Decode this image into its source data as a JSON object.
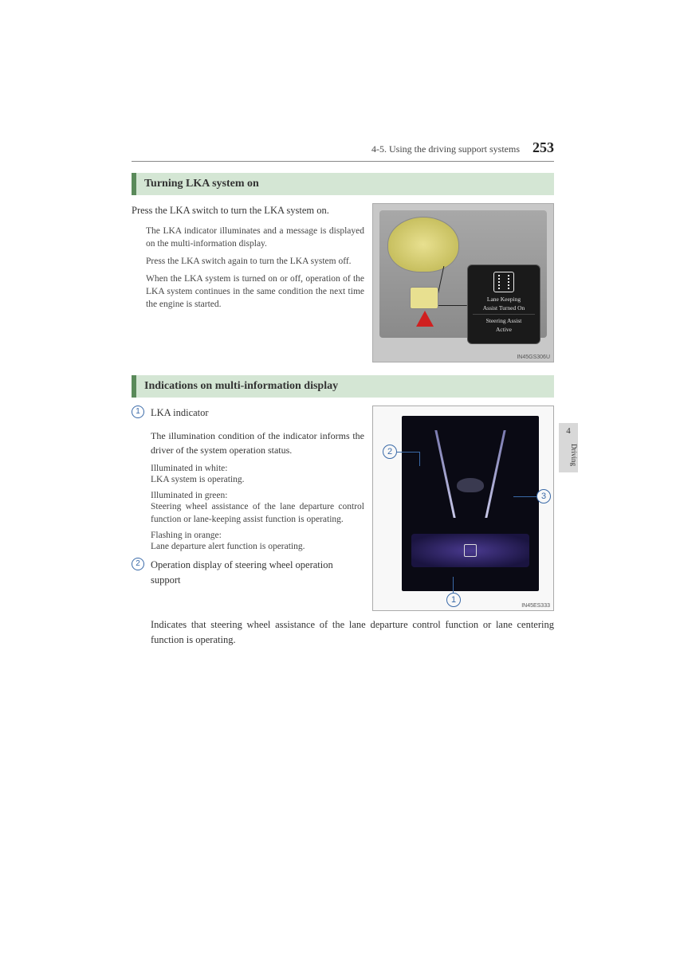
{
  "header": {
    "section_label": "4-5. Using the driving support systems",
    "page_number": "253"
  },
  "side_tab": {
    "chapter_num": "4",
    "chapter_label": "Driving"
  },
  "section1": {
    "title": "Turning LKA system on",
    "intro": "Press the LKA switch to turn the LKA system on.",
    "p1": "The LKA indicator illuminates and a message is displayed on the multi-information display.",
    "p2": "Press the LKA switch again to turn the LKA system off.",
    "p3": "When the LKA system is turned on or off, operation of the LKA system continues in the same condition the next time the engine is started.",
    "popup": {
      "line1": "Lane Keeping",
      "line2": "Assist Turned On",
      "line3": "Steering Assist",
      "line4": "Active"
    },
    "img_code": "IN45GS306U"
  },
  "section2": {
    "title": "Indications on multi-information display",
    "item1": {
      "num": "1",
      "label": "LKA indicator",
      "body": "The illumination condition of the indicator informs the driver of the system operation status.",
      "white_h": "Illuminated in white:",
      "white_t": "LKA system is operating.",
      "green_h": "Illuminated in green:",
      "green_t": "Steering wheel assistance of the lane departure control function or lane-keeping assist function is operating.",
      "orange_h": "Flashing in orange:",
      "orange_t": "Lane departure alert function is operating."
    },
    "item2": {
      "num": "2",
      "label": "Operation display of steering wheel operation support",
      "body": "Indicates that steering wheel assistance of the lane departure control function or lane centering function is operating."
    },
    "callouts": {
      "c1": "1",
      "c2": "2",
      "c3": "3"
    },
    "img_code": "IN45ES333"
  }
}
